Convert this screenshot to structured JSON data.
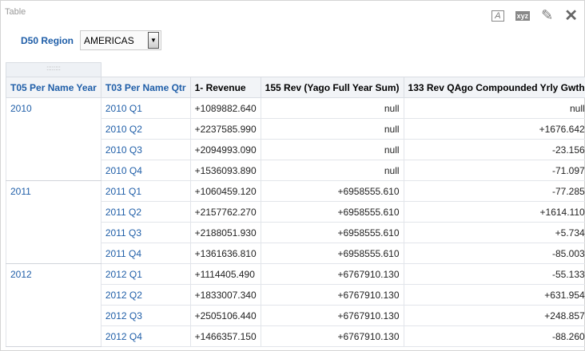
{
  "view": {
    "title": "Table",
    "tools": {
      "format": "A",
      "xyz": "xyz",
      "edit": "✎",
      "close": "✕"
    }
  },
  "prompt": {
    "label": "D50 Region",
    "value": "AMERICAS"
  },
  "handle": "::::::::",
  "table": {
    "headers": [
      "T05 Per Name Year",
      "T03 Per Name Qtr",
      "1- Revenue",
      "155 Rev (Yago Full Year Sum)",
      "133 Rev QAgo Compounded Yrly Gwth"
    ],
    "groups": [
      {
        "year": "2010",
        "rows": [
          [
            "2010 Q1",
            "+1089882.640",
            "null",
            "null"
          ],
          [
            "2010 Q2",
            "+2237585.990",
            "null",
            "+1676.642"
          ],
          [
            "2010 Q3",
            "+2094993.090",
            "null",
            "-23.156"
          ],
          [
            "2010 Q4",
            "+1536093.890",
            "null",
            "-71.097"
          ]
        ]
      },
      {
        "year": "2011",
        "rows": [
          [
            "2011 Q1",
            "+1060459.120",
            "+6958555.610",
            "-77.285"
          ],
          [
            "2011 Q2",
            "+2157762.270",
            "+6958555.610",
            "+1614.110"
          ],
          [
            "2011 Q3",
            "+2188051.930",
            "+6958555.610",
            "+5.734"
          ],
          [
            "2011 Q4",
            "+1361636.810",
            "+6958555.610",
            "-85.003"
          ]
        ]
      },
      {
        "year": "2012",
        "rows": [
          [
            "2012 Q1",
            "+1114405.490",
            "+6767910.130",
            "-55.133"
          ],
          [
            "2012 Q2",
            "+1833007.340",
            "+6767910.130",
            "+631.954"
          ],
          [
            "2012 Q3",
            "+2505106.440",
            "+6767910.130",
            "+248.857"
          ],
          [
            "2012 Q4",
            "+1466357.150",
            "+6767910.130",
            "-88.260"
          ]
        ]
      }
    ]
  }
}
